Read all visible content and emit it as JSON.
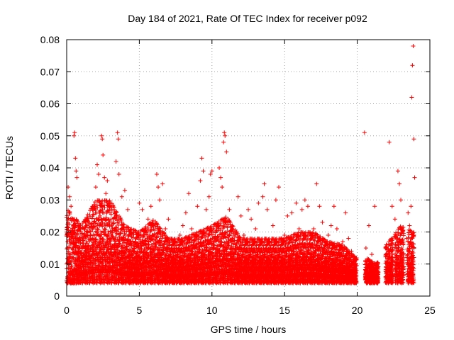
{
  "chart_data": {
    "type": "scatter",
    "title": "Day 184 of 2021, Rate Of TEC Index for receiver p092",
    "xlabel": "GPS time / hours",
    "ylabel": "ROTI / TECUs",
    "xlim": [
      0,
      25
    ],
    "ylim": [
      0,
      0.08
    ],
    "x_ticks": [
      0,
      5,
      10,
      15,
      20,
      25
    ],
    "x_tick_labels": [
      "0",
      "5",
      "10",
      "15",
      "20",
      "25"
    ],
    "y_ticks": [
      0,
      0.01,
      0.02,
      0.03,
      0.04,
      0.05,
      0.06,
      0.07,
      0.08
    ],
    "y_tick_labels": [
      "0",
      "0.01",
      "0.02",
      "0.03",
      "0.04",
      "0.05",
      "0.06",
      "0.07",
      "0.08"
    ],
    "grid": true,
    "marker": "plus",
    "color": "#ff0000",
    "series": [
      {
        "points": [
          [
            0.05,
            0.005
          ],
          [
            0.1,
            0.034
          ],
          [
            0.15,
            0.012
          ],
          [
            0.2,
            0.031
          ],
          [
            0.3,
            0.028
          ],
          [
            0.35,
            0.008
          ],
          [
            0.45,
            0.022
          ],
          [
            0.5,
            0.05
          ],
          [
            0.55,
            0.051
          ],
          [
            0.6,
            0.043
          ],
          [
            0.65,
            0.039
          ],
          [
            0.7,
            0.037
          ],
          [
            0.8,
            0.017
          ],
          [
            1.0,
            0.006
          ],
          [
            1.2,
            0.021
          ],
          [
            1.3,
            0.015
          ],
          [
            1.4,
            0.022
          ],
          [
            1.6,
            0.009
          ],
          [
            1.8,
            0.028
          ],
          [
            2.0,
            0.034
          ],
          [
            2.1,
            0.041
          ],
          [
            2.2,
            0.038
          ],
          [
            2.3,
            0.025
          ],
          [
            2.4,
            0.05
          ],
          [
            2.45,
            0.049
          ],
          [
            2.5,
            0.044
          ],
          [
            2.6,
            0.037
          ],
          [
            2.7,
            0.032
          ],
          [
            2.8,
            0.036
          ],
          [
            3.0,
            0.029
          ],
          [
            3.2,
            0.018
          ],
          [
            3.4,
            0.042
          ],
          [
            3.5,
            0.051
          ],
          [
            3.55,
            0.049
          ],
          [
            3.6,
            0.038
          ],
          [
            3.8,
            0.031
          ],
          [
            4.0,
            0.033
          ],
          [
            4.2,
            0.027
          ],
          [
            4.4,
            0.019
          ],
          [
            4.6,
            0.014
          ],
          [
            4.8,
            0.011
          ],
          [
            5.0,
            0.029
          ],
          [
            5.2,
            0.027
          ],
          [
            5.4,
            0.016
          ],
          [
            5.6,
            0.024
          ],
          [
            5.8,
            0.028
          ],
          [
            6.0,
            0.019
          ],
          [
            6.2,
            0.038
          ],
          [
            6.3,
            0.034
          ],
          [
            6.4,
            0.03
          ],
          [
            6.6,
            0.035
          ],
          [
            6.8,
            0.021
          ],
          [
            7.0,
            0.024
          ],
          [
            7.2,
            0.012
          ],
          [
            7.4,
            0.015
          ],
          [
            7.6,
            0.01
          ],
          [
            7.8,
            0.019
          ],
          [
            8.0,
            0.022
          ],
          [
            8.2,
            0.026
          ],
          [
            8.4,
            0.032
          ],
          [
            8.6,
            0.021
          ],
          [
            8.8,
            0.017
          ],
          [
            9.0,
            0.028
          ],
          [
            9.2,
            0.036
          ],
          [
            9.3,
            0.043
          ],
          [
            9.4,
            0.039
          ],
          [
            9.6,
            0.027
          ],
          [
            9.8,
            0.031
          ],
          [
            9.9,
            0.038
          ],
          [
            10.0,
            0.039
          ],
          [
            10.2,
            0.018
          ],
          [
            10.5,
            0.04
          ],
          [
            10.6,
            0.037
          ],
          [
            10.7,
            0.034
          ],
          [
            10.8,
            0.048
          ],
          [
            10.85,
            0.051
          ],
          [
            10.9,
            0.05
          ],
          [
            11.0,
            0.045
          ],
          [
            11.2,
            0.027
          ],
          [
            11.4,
            0.022
          ],
          [
            11.6,
            0.015
          ],
          [
            11.8,
            0.031
          ],
          [
            12.0,
            0.025
          ],
          [
            12.2,
            0.019
          ],
          [
            12.5,
            0.027
          ],
          [
            12.7,
            0.024
          ],
          [
            13.0,
            0.021
          ],
          [
            13.2,
            0.029
          ],
          [
            13.5,
            0.031
          ],
          [
            13.6,
            0.035
          ],
          [
            13.8,
            0.027
          ],
          [
            14.0,
            0.015
          ],
          [
            14.2,
            0.022
          ],
          [
            14.4,
            0.03
          ],
          [
            14.6,
            0.034
          ],
          [
            14.8,
            0.018
          ],
          [
            15.0,
            0.019
          ],
          [
            15.2,
            0.025
          ],
          [
            15.5,
            0.026
          ],
          [
            15.8,
            0.029
          ],
          [
            16.0,
            0.021
          ],
          [
            16.2,
            0.027
          ],
          [
            16.4,
            0.03
          ],
          [
            16.6,
            0.028
          ],
          [
            16.8,
            0.016
          ],
          [
            17.0,
            0.021
          ],
          [
            17.2,
            0.035
          ],
          [
            17.4,
            0.028
          ],
          [
            17.6,
            0.023
          ],
          [
            17.8,
            0.017
          ],
          [
            18.0,
            0.019
          ],
          [
            18.2,
            0.022
          ],
          [
            18.4,
            0.028
          ],
          [
            18.6,
            0.021
          ],
          [
            18.8,
            0.013
          ],
          [
            19.0,
            0.017
          ],
          [
            19.2,
            0.026
          ],
          [
            19.4,
            0.018
          ],
          [
            19.6,
            0.014
          ],
          [
            19.8,
            0.012
          ],
          [
            19.9,
            0.008
          ],
          [
            20.5,
            0.051
          ],
          [
            20.6,
            0.015
          ],
          [
            20.8,
            0.022
          ],
          [
            21.0,
            0.013
          ],
          [
            21.2,
            0.028
          ],
          [
            21.4,
            0.009
          ],
          [
            22.0,
            0.016
          ],
          [
            22.2,
            0.048
          ],
          [
            22.4,
            0.028
          ],
          [
            22.6,
            0.024
          ],
          [
            22.8,
            0.039
          ],
          [
            22.9,
            0.035
          ],
          [
            23.0,
            0.03
          ],
          [
            23.2,
            0.012
          ],
          [
            23.4,
            0.018
          ],
          [
            23.5,
            0.026
          ],
          [
            23.6,
            0.022
          ],
          [
            23.7,
            0.028
          ],
          [
            23.75,
            0.062
          ],
          [
            23.8,
            0.072
          ],
          [
            23.85,
            0.078
          ],
          [
            23.9,
            0.049
          ],
          [
            23.95,
            0.037
          ]
        ],
        "bulk_envelope": [
          [
            0,
            0.004,
            0.028
          ],
          [
            1,
            0.004,
            0.022
          ],
          [
            2,
            0.004,
            0.03
          ],
          [
            3,
            0.004,
            0.03
          ],
          [
            4,
            0.004,
            0.022
          ],
          [
            5,
            0.004,
            0.02
          ],
          [
            6,
            0.004,
            0.024
          ],
          [
            7,
            0.004,
            0.018
          ],
          [
            8,
            0.004,
            0.018
          ],
          [
            9,
            0.004,
            0.02
          ],
          [
            10,
            0.004,
            0.022
          ],
          [
            11,
            0.004,
            0.025
          ],
          [
            12,
            0.004,
            0.018
          ],
          [
            13,
            0.004,
            0.018
          ],
          [
            14,
            0.004,
            0.018
          ],
          [
            15,
            0.004,
            0.018
          ],
          [
            16,
            0.004,
            0.02
          ],
          [
            17,
            0.004,
            0.02
          ],
          [
            18,
            0.004,
            0.017
          ],
          [
            19,
            0.004,
            0.016
          ],
          [
            19.9,
            0.004,
            0.012
          ],
          [
            20.6,
            0.004,
            0.012
          ],
          [
            21.3,
            0.004,
            0.01
          ],
          [
            22.0,
            0.004,
            0.016
          ],
          [
            23.0,
            0.004,
            0.022
          ],
          [
            23.9,
            0.004,
            0.02
          ]
        ]
      }
    ]
  }
}
